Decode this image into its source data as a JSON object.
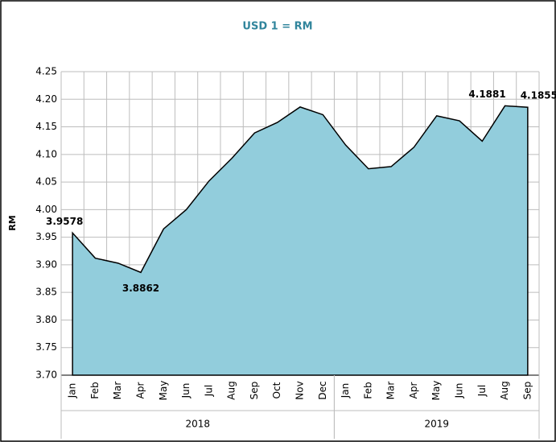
{
  "chart_data": {
    "type": "area",
    "title": "USD 1 = RM",
    "ylabel": "RM",
    "category_groups": [
      {
        "label": "2018",
        "categories": [
          "Jan",
          "Feb",
          "Mar",
          "Apr",
          "May",
          "Jun",
          "Jul",
          "Aug",
          "Sep",
          "Oct",
          "Nov",
          "Dec"
        ]
      },
      {
        "label": "2019",
        "categories": [
          "Jan",
          "Feb",
          "Mar",
          "Apr",
          "May",
          "Jun",
          "Jul",
          "Aug",
          "Sep"
        ]
      }
    ],
    "values": [
      3.9578,
      3.912,
      3.903,
      3.8862,
      3.965,
      4.0,
      4.052,
      4.093,
      4.139,
      4.158,
      4.186,
      4.172,
      4.117,
      4.074,
      4.078,
      4.113,
      4.17,
      4.161,
      4.124,
      4.1881,
      4.1855
    ],
    "value_labels": [
      "3.9578",
      null,
      null,
      "3.8862",
      null,
      null,
      null,
      null,
      null,
      null,
      null,
      null,
      null,
      null,
      null,
      null,
      null,
      null,
      null,
      "4.1881",
      "4.1855"
    ],
    "color": "#92cddc",
    "line_color": "#000000",
    "title_color": "#31859c",
    "ylim": [
      3.7,
      4.25
    ],
    "yticks": [
      {
        "value": 3.7,
        "label": "3.70"
      },
      3.75,
      {
        "value": 3.8,
        "label": "3.80"
      },
      3.85,
      {
        "value": 3.9,
        "label": "3.90"
      },
      3.95,
      {
        "value": 4.0,
        "label": "4.00"
      },
      4.05,
      {
        "value": 4.1,
        "label": "4.10"
      },
      4.15,
      {
        "value": 4.2,
        "label": "4.20"
      },
      4.25
    ],
    "grid": true
  }
}
